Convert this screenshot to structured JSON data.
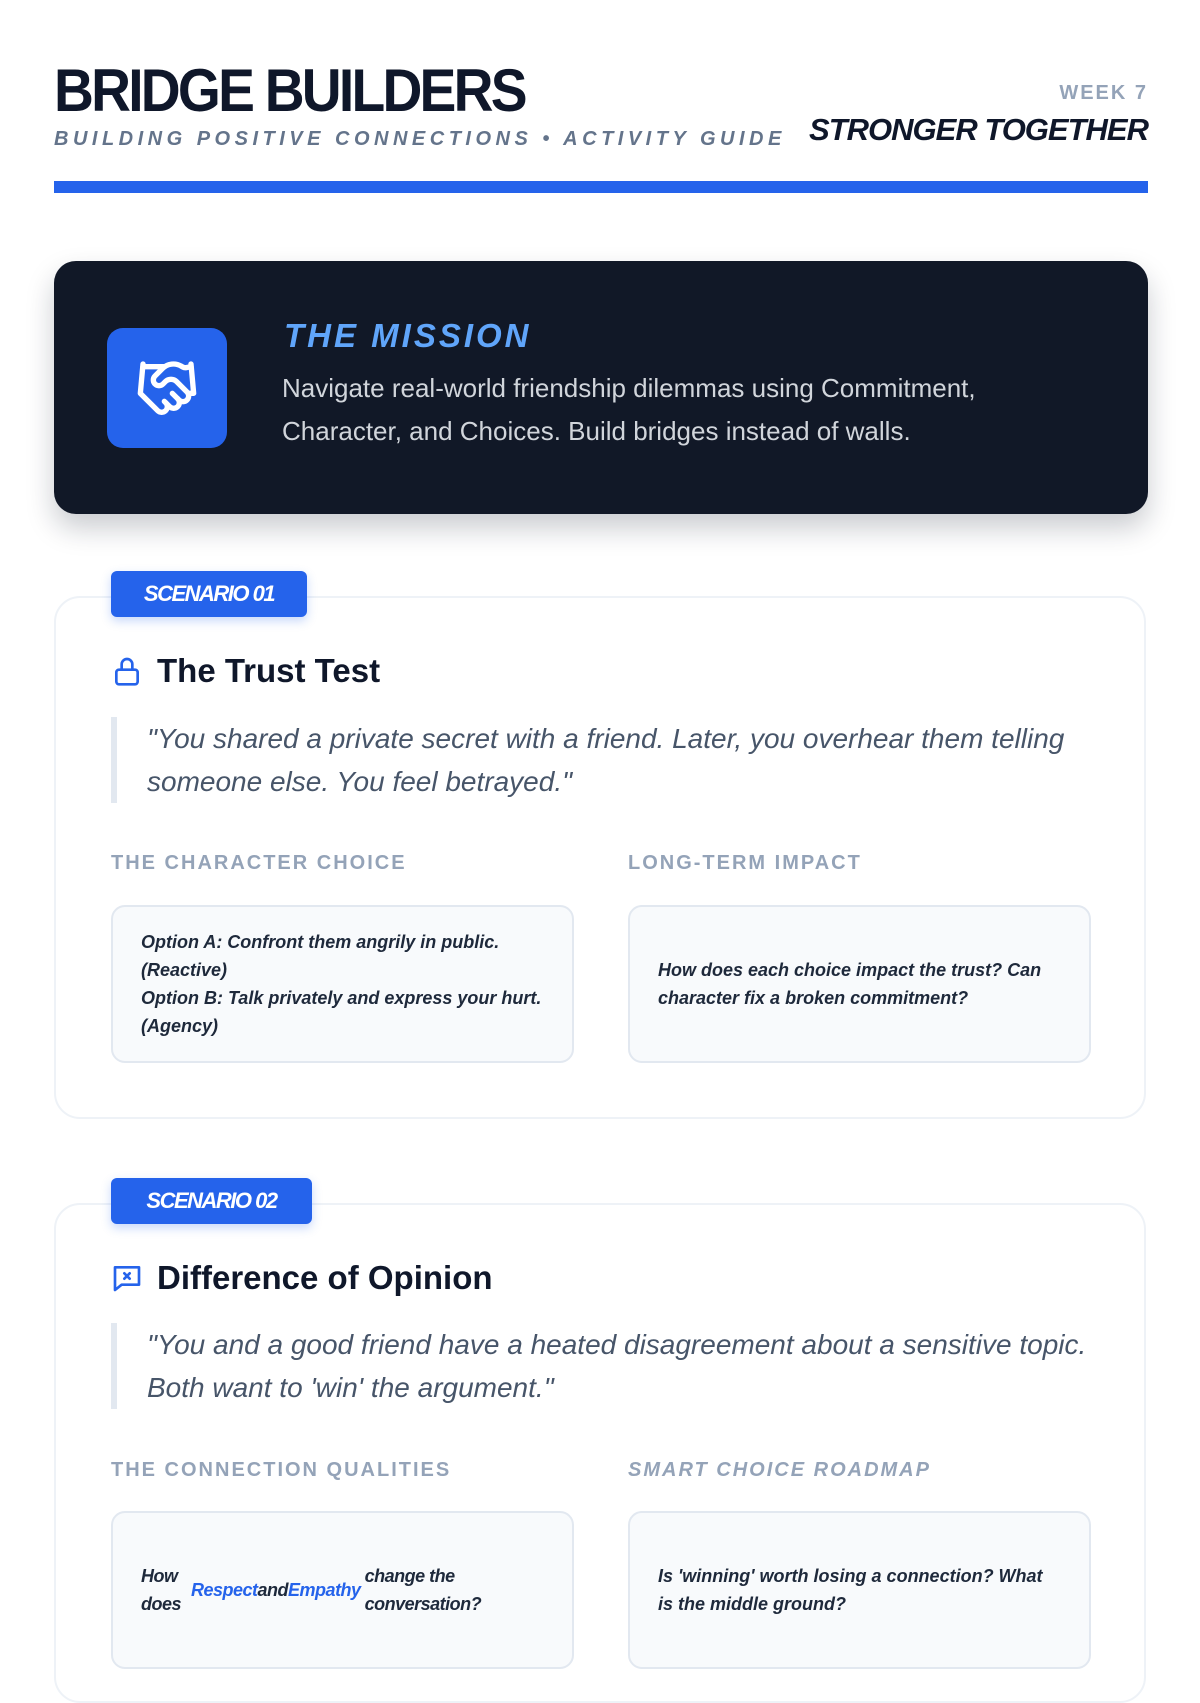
{
  "header": {
    "title": "BRIDGE BUILDERS",
    "subtitle": "BUILDING POSITIVE CONNECTIONS • ACTIVITY GUIDE",
    "week": "WEEK 7",
    "theme": "STRONGER TOGETHER"
  },
  "mission": {
    "icon": "handshake-icon",
    "title": "THE MISSION",
    "text": "Navigate real-world friendship dilemmas using Commitment, Character, and Choices. Build bridges instead of walls."
  },
  "scenarios": [
    {
      "badge": "SCENARIO 01",
      "icon": "lock-icon",
      "title": "The Trust Test",
      "quote": "\"You shared a private secret with a friend. Later, you overhear them telling someone else. You feel betrayed.\"",
      "left_label": "THE CHARACTER CHOICE",
      "left_lines": [
        "Option A: Confront them angrily in public. (Reactive)",
        "Option B: Talk privately and express your hurt. (Agency)"
      ],
      "right_label": "LONG-TERM IMPACT",
      "right_text": "How does each choice impact the trust? Can character fix a broken commitment?"
    },
    {
      "badge": "SCENARIO 02",
      "icon": "message-x-icon",
      "title": "Difference of Opinion",
      "quote": "\"You and a good friend have a heated disagreement about a sensitive topic. Both want to 'win' the argument.\"",
      "left_label": "THE CONNECTION QUALITIES",
      "left_parts": {
        "pre": "How does",
        "term1": "Respect",
        "and": "and",
        "term2": "Empathy",
        "post": "change the conversation?"
      },
      "right_label": "SMART CHOICE ROADMAP",
      "right_text": "Is 'winning' worth losing a connection? What is the middle ground?"
    }
  ],
  "colors": {
    "accent": "#2563eb",
    "dark": "#111827",
    "mission_title": "#60a5fa"
  }
}
